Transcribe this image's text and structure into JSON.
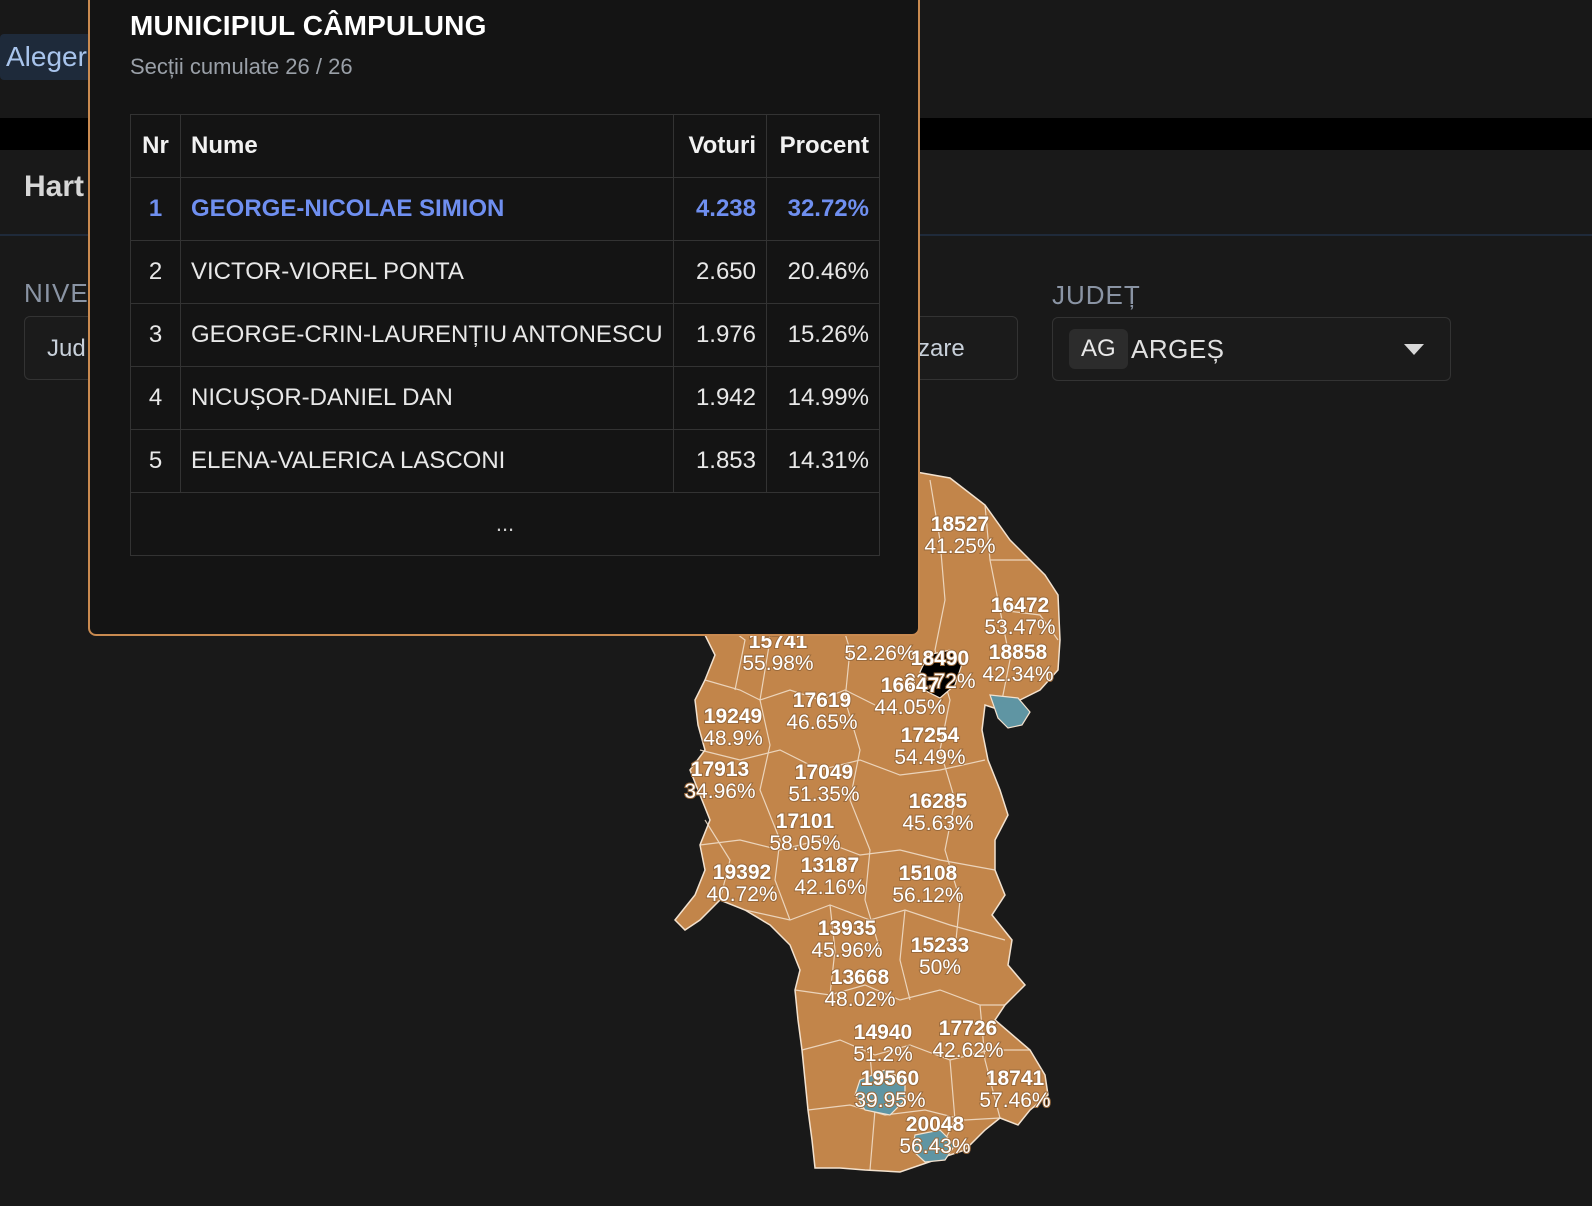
{
  "header": {
    "nav_label": "Alegeri"
  },
  "page": {
    "section_title": "Hart",
    "nivel_label": "NIVE",
    "nivel_value": "Jud",
    "vizualizare_value": "alizare",
    "judet_label": "JUDEȚ",
    "judet_code": "AG",
    "judet_name": "ARGEȘ"
  },
  "tooltip": {
    "title": "MUNICIPIUL CÂMPULUNG",
    "subtitle": "Secții cumulate 26 / 26",
    "columns": [
      "Nr",
      "Nume",
      "Voturi",
      "Procent"
    ],
    "rows": [
      {
        "nr": "1",
        "name": "GEORGE-NICOLAE SIMION",
        "votes": "4.238",
        "pct": "32.72%"
      },
      {
        "nr": "2",
        "name": "VICTOR-VIOREL PONTA",
        "votes": "2.650",
        "pct": "20.46%"
      },
      {
        "nr": "3",
        "name": "GEORGE-CRIN-LAURENȚIU ANTONESCU",
        "votes": "1.976",
        "pct": "15.26%"
      },
      {
        "nr": "4",
        "name": "NICUȘOR-DANIEL DAN",
        "votes": "1.942",
        "pct": "14.99%"
      },
      {
        "nr": "5",
        "name": "ELENA-VALERICA LASCONI",
        "votes": "1.853",
        "pct": "14.31%"
      }
    ],
    "more": "..."
  },
  "map": {
    "colors": {
      "orange": "#c2854a",
      "blue": "#5f95a3",
      "selected": "#000000",
      "border": "#f3e2cf"
    },
    "labels": [
      {
        "code": "18527",
        "pct": "41.25%"
      },
      {
        "code": "16472",
        "pct": "53.47%"
      },
      {
        "code": "18858",
        "pct": "42.34%"
      },
      {
        "code": "15741",
        "pct": "55.98%"
      },
      {
        "code": "",
        "pct": "52.26%"
      },
      {
        "code": "18490",
        "pct": "32.72%"
      },
      {
        "code": "16647",
        "pct": "44.05%"
      },
      {
        "code": "17619",
        "pct": "46.65%"
      },
      {
        "code": "19249",
        "pct": "48.9%"
      },
      {
        "code": "17254",
        "pct": "54.49%"
      },
      {
        "code": "17913",
        "pct": "34.96%"
      },
      {
        "code": "17049",
        "pct": "51.35%"
      },
      {
        "code": "16285",
        "pct": "45.63%"
      },
      {
        "code": "17101",
        "pct": "58.05%"
      },
      {
        "code": "19392",
        "pct": "40.72%"
      },
      {
        "code": "13187",
        "pct": "42.16%"
      },
      {
        "code": "15108",
        "pct": "56.12%"
      },
      {
        "code": "13935",
        "pct": "45.96%"
      },
      {
        "code": "15233",
        "pct": "50%"
      },
      {
        "code": "13668",
        "pct": "48.02%"
      },
      {
        "code": "14940",
        "pct": "51.2%"
      },
      {
        "code": "17726",
        "pct": "42.62%"
      },
      {
        "code": "19560",
        "pct": "39.95%"
      },
      {
        "code": "18741",
        "pct": "57.46%"
      },
      {
        "code": "20048",
        "pct": "56.43%"
      }
    ]
  }
}
